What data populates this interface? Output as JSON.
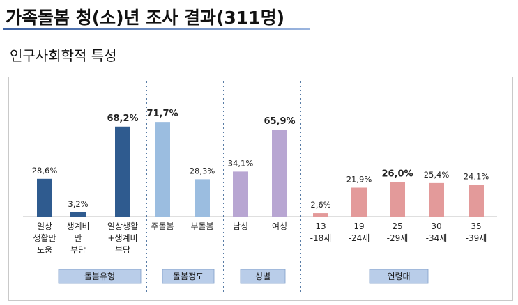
{
  "page": {
    "title": "가족돌봄 청(소)년 조사 결과(311명)",
    "subtitle": "인구사회학적 특성"
  },
  "chart_data": {
    "type": "bar",
    "title": "",
    "value_suffix": "%",
    "groups": [
      {
        "name": "돌봄유형",
        "color": "#2f5b8f",
        "categories": [
          {
            "label": [
              "일상",
              "생활만",
              "도움"
            ],
            "value": 28.6,
            "display": "28,6%",
            "bold": false
          },
          {
            "label": [
              "생계비",
              "만",
              "부담"
            ],
            "value": 3.2,
            "display": "3,2%",
            "bold": false
          },
          {
            "label": [
              "일상생활",
              "+생계비",
              "부담"
            ],
            "value": 68.2,
            "display": "68,2%",
            "bold": true
          }
        ]
      },
      {
        "name": "돌봄정도",
        "color": "#9bbde0",
        "categories": [
          {
            "label": [
              "주돌봄"
            ],
            "value": 71.7,
            "display": "71,7%",
            "bold": true
          },
          {
            "label": [
              "부돌봄"
            ],
            "value": 28.3,
            "display": "28,3%",
            "bold": false
          }
        ]
      },
      {
        "name": "성별",
        "color": "#b8a6d2",
        "categories": [
          {
            "label": [
              "남성"
            ],
            "value": 34.1,
            "display": "34,1%",
            "bold": false
          },
          {
            "label": [
              "여성"
            ],
            "value": 65.9,
            "display": "65,9%",
            "bold": true
          }
        ]
      },
      {
        "name": "연령대",
        "color": "#e39a9a",
        "categories": [
          {
            "label": [
              "13",
              "-18세"
            ],
            "value": 2.6,
            "display": "2,6%",
            "bold": false
          },
          {
            "label": [
              "19",
              "-24세"
            ],
            "value": 21.9,
            "display": "21,9%",
            "bold": false
          },
          {
            "label": [
              "25",
              "-29세"
            ],
            "value": 26.0,
            "display": "26,0%",
            "bold": true
          },
          {
            "label": [
              "30",
              "-34세"
            ],
            "value": 25.4,
            "display": "25,4%",
            "bold": false
          },
          {
            "label": [
              "35",
              "-39세"
            ],
            "value": 24.1,
            "display": "24,1%",
            "bold": false
          }
        ]
      }
    ],
    "ylim": [
      0,
      100
    ],
    "grid": false,
    "group_label_bg": "#b9cde9"
  }
}
